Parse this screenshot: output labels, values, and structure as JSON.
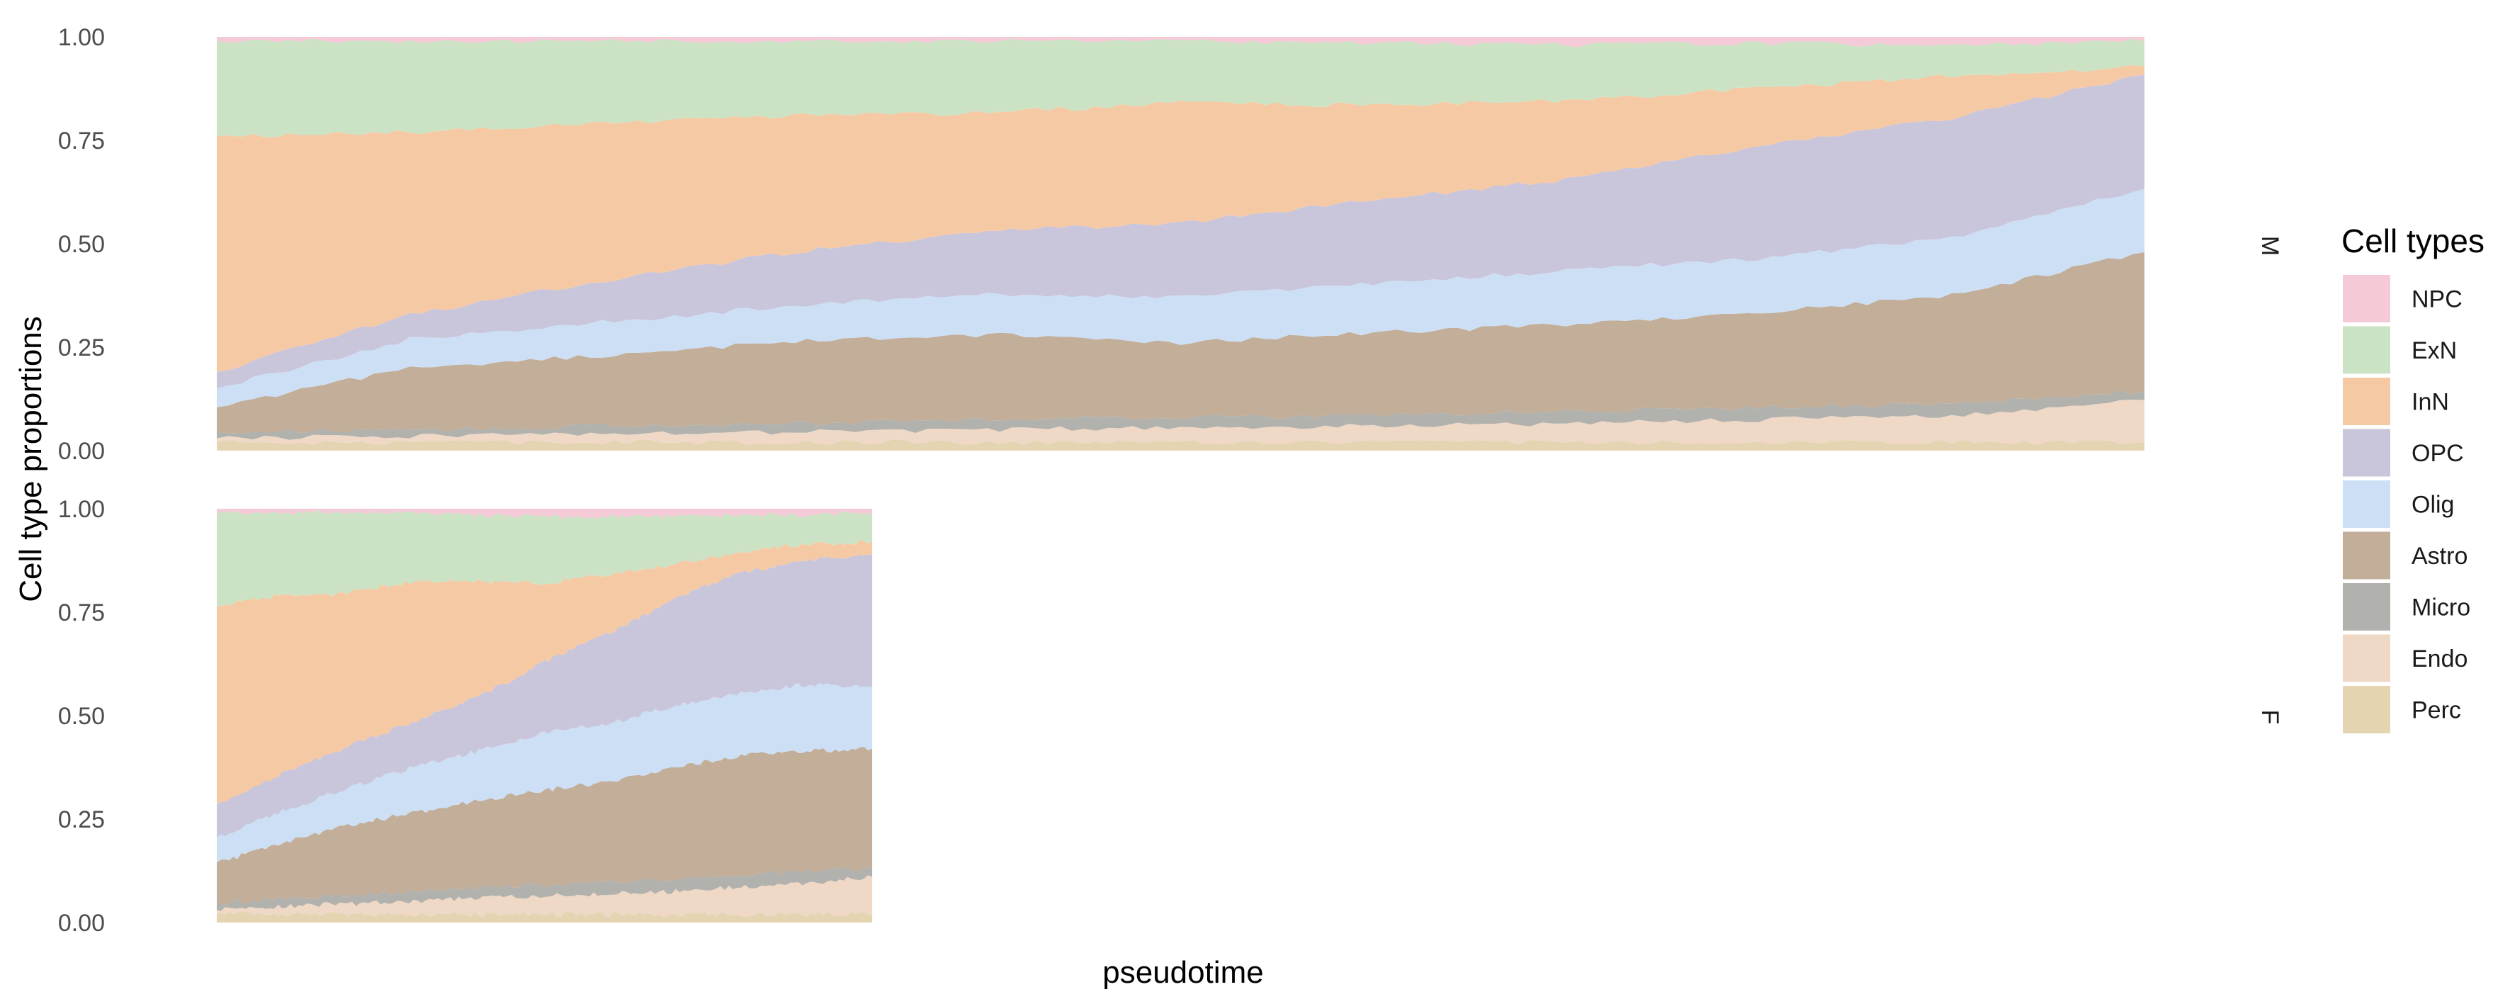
{
  "chart_data": {
    "type": "area",
    "stacked": true,
    "normalized": true,
    "xlabel": "pseudotime",
    "ylabel": "Cell type proportions",
    "ylim": [
      0,
      1
    ],
    "yticks": [
      "0.00",
      "0.25",
      "0.50",
      "0.75",
      "1.00"
    ],
    "x_ticks_shown": false,
    "grid": false,
    "legend": {
      "title": "Cell types",
      "position": "right",
      "order_top_to_bottom": [
        "NPC",
        "ExN",
        "InN",
        "OPC",
        "Olig",
        "Astro",
        "Micro",
        "Endo",
        "Perc"
      ]
    },
    "colors": {
      "NPC": "#f4cad6",
      "ExN": "#cbe3c4",
      "InN": "#f6c9a5",
      "OPC": "#c9c5da",
      "Olig": "#cddff4",
      "Astro": "#c2ae99",
      "Micro": "#b1b1ad",
      "Endo": "#efd8c5",
      "Perc": "#e4d4b2"
    },
    "stack_order_bottom_to_top": [
      "Perc",
      "Endo",
      "Micro",
      "Astro",
      "Olig",
      "OPC",
      "InN",
      "ExN",
      "NPC"
    ],
    "facets": [
      {
        "strip": "M",
        "x_extent": [
          0,
          1
        ],
        "x": [
          0,
          0.1,
          0.2,
          0.3,
          0.4,
          0.5,
          0.6,
          0.7,
          0.8,
          0.9,
          1.0
        ],
        "series": [
          {
            "name": "Perc",
            "values": [
              0.02,
              0.02,
              0.02,
              0.02,
              0.02,
              0.02,
              0.02,
              0.02,
              0.02,
              0.02,
              0.02
            ]
          },
          {
            "name": "Endo",
            "values": [
              0.01,
              0.015,
              0.02,
              0.025,
              0.03,
              0.035,
              0.04,
              0.045,
              0.055,
              0.065,
              0.1
            ]
          },
          {
            "name": "Micro",
            "values": [
              0.015,
              0.015,
              0.02,
              0.02,
              0.025,
              0.025,
              0.025,
              0.03,
              0.03,
              0.03,
              0.02
            ]
          },
          {
            "name": "Astro",
            "values": [
              0.06,
              0.15,
              0.17,
              0.2,
              0.2,
              0.18,
              0.2,
              0.21,
              0.23,
              0.26,
              0.33
            ]
          },
          {
            "name": "Olig",
            "values": [
              0.045,
              0.07,
              0.08,
              0.085,
              0.095,
              0.11,
              0.12,
              0.13,
              0.13,
              0.14,
              0.15
            ]
          },
          {
            "name": "OPC",
            "values": [
              0.04,
              0.06,
              0.1,
              0.13,
              0.15,
              0.18,
              0.2,
              0.22,
              0.27,
              0.29,
              0.27
            ]
          },
          {
            "name": "InN",
            "values": [
              0.57,
              0.44,
              0.38,
              0.33,
              0.28,
              0.29,
              0.23,
              0.19,
              0.14,
              0.1,
              0.02
            ]
          },
          {
            "name": "ExN",
            "values": [
              0.23,
              0.22,
              0.2,
              0.18,
              0.17,
              0.15,
              0.15,
              0.135,
              0.11,
              0.075,
              0.06
            ]
          },
          {
            "name": "NPC",
            "values": [
              0.01,
              0.01,
              0.01,
              0.01,
              0.01,
              0.01,
              0.015,
              0.02,
              0.015,
              0.02,
              0.01
            ]
          }
        ]
      },
      {
        "strip": "F",
        "x_extent": [
          0,
          0.34
        ],
        "x": [
          0,
          0.034,
          0.068,
          0.102,
          0.136,
          0.17,
          0.204,
          0.238,
          0.272,
          0.306,
          0.34
        ],
        "series": [
          {
            "name": "Perc",
            "values": [
              0.02,
              0.02,
              0.02,
              0.02,
              0.02,
              0.02,
              0.02,
              0.02,
              0.02,
              0.02,
              0.02
            ]
          },
          {
            "name": "Endo",
            "values": [
              0.01,
              0.02,
              0.025,
              0.03,
              0.04,
              0.045,
              0.05,
              0.055,
              0.065,
              0.075,
              0.09
            ]
          },
          {
            "name": "Micro",
            "values": [
              0.015,
              0.02,
              0.02,
              0.025,
              0.025,
              0.025,
              0.03,
              0.03,
              0.03,
              0.03,
              0.02
            ]
          },
          {
            "name": "Astro",
            "values": [
              0.1,
              0.13,
              0.17,
              0.19,
              0.21,
              0.23,
              0.24,
              0.27,
              0.29,
              0.29,
              0.29
            ]
          },
          {
            "name": "Olig",
            "values": [
              0.06,
              0.08,
              0.09,
              0.11,
              0.12,
              0.14,
              0.14,
              0.15,
              0.15,
              0.16,
              0.15
            ]
          },
          {
            "name": "OPC",
            "values": [
              0.08,
              0.09,
              0.1,
              0.11,
              0.13,
              0.17,
              0.22,
              0.26,
              0.29,
              0.3,
              0.32
            ]
          },
          {
            "name": "InN",
            "values": [
              0.48,
              0.43,
              0.37,
              0.34,
              0.28,
              0.19,
              0.14,
              0.08,
              0.05,
              0.04,
              0.03
            ]
          },
          {
            "name": "ExN",
            "values": [
              0.225,
              0.2,
              0.195,
              0.165,
              0.16,
              0.16,
              0.14,
              0.115,
              0.09,
              0.07,
              0.07
            ]
          },
          {
            "name": "NPC",
            "values": [
              0.01,
              0.01,
              0.01,
              0.01,
              0.015,
              0.02,
              0.02,
              0.02,
              0.015,
              0.015,
              0.01
            ]
          }
        ]
      }
    ]
  }
}
